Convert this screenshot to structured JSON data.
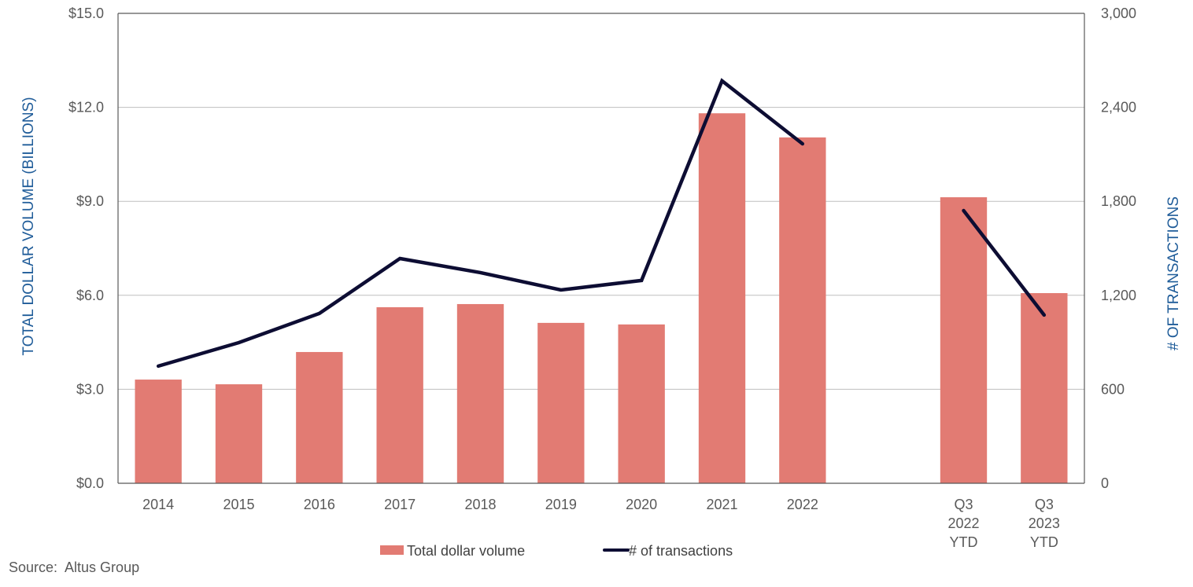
{
  "chart_data": {
    "type": "bar",
    "title": "",
    "categories": [
      "2014",
      "2015",
      "2016",
      "2017",
      "2018",
      "2019",
      "2020",
      "2021",
      "2022",
      "",
      "Q3 2022 YTD",
      "Q3 2023 YTD"
    ],
    "category_labels": [
      [
        "2014"
      ],
      [
        "2015"
      ],
      [
        "2016"
      ],
      [
        "2017"
      ],
      [
        "2018"
      ],
      [
        "2019"
      ],
      [
        "2020"
      ],
      [
        "2021"
      ],
      [
        "2022"
      ],
      [
        ""
      ],
      [
        "Q3",
        "2022",
        "YTD"
      ],
      [
        "Q3",
        "2023",
        "YTD"
      ]
    ],
    "series": [
      {
        "name": "Total dollar volume",
        "type": "bar",
        "axis": "left",
        "color": "#e27b73",
        "values": [
          3.31,
          3.16,
          4.19,
          5.62,
          5.72,
          5.12,
          5.07,
          11.81,
          11.04,
          null,
          9.13,
          6.07
        ]
      },
      {
        "name": "# of transactions",
        "type": "line",
        "axis": "right",
        "color": "#0d0d33",
        "segments": [
          [
            0,
            8
          ],
          [
            10,
            11
          ]
        ],
        "values": [
          748,
          898,
          1084,
          1435,
          1345,
          1234,
          1295,
          2569,
          2167,
          null,
          1741,
          1074
        ]
      }
    ],
    "ylabel": "TOTAL DOLLAR VOLUME (BILLIONS)",
    "ylim": [
      0,
      15
    ],
    "yticks": [
      0,
      3,
      6,
      9,
      12,
      15
    ],
    "ytick_labels": [
      "$0.0",
      "$3.0",
      "$6.0",
      "$9.0",
      "$12.0",
      "$15.0"
    ],
    "y2label": "# OF TRANSACTIONS",
    "y2lim": [
      0,
      3000
    ],
    "y2ticks": [
      0,
      600,
      1200,
      1800,
      2400,
      3000
    ],
    "y2tick_labels": [
      "0",
      "600",
      "1,200",
      "1,800",
      "2,400",
      "3,000"
    ],
    "xlabel": "",
    "grid": true,
    "legend_position": "bottom-center",
    "legend": [
      "Total dollar volume",
      "# of transactions"
    ]
  },
  "source_text": "Source:  Altus Group"
}
